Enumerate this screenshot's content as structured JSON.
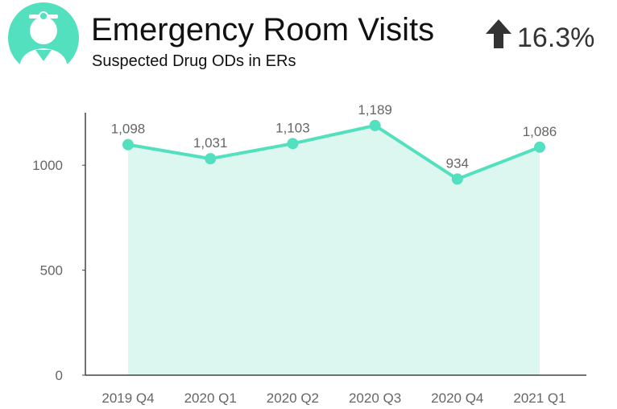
{
  "chart_data": {
    "type": "line",
    "title": "Emergency Room Visits",
    "subtitle": "Suspected Drug ODs in ERs",
    "annotation": "16.3%",
    "categories": [
      "2019 Q4",
      "2020 Q1",
      "2020 Q2",
      "2020 Q3",
      "2020 Q4",
      "2021 Q1"
    ],
    "values": [
      1098,
      1031,
      1103,
      1189,
      934,
      1086
    ],
    "value_labels": [
      "1,098",
      "1,031",
      "1,103",
      "1,189",
      "934",
      "1,086"
    ],
    "color": "#52e0bf",
    "area_color": "#dcf7ef",
    "ylim": [
      0,
      1250
    ],
    "yticks": [
      0,
      500,
      1000
    ]
  }
}
